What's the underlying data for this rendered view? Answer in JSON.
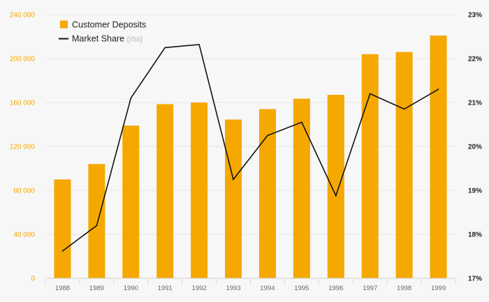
{
  "chart_data": {
    "type": "bar+line",
    "categories": [
      "1988",
      "1989",
      "1990",
      "1991",
      "1992",
      "1993",
      "1994",
      "1995",
      "1996",
      "1997",
      "1998",
      "1999"
    ],
    "series": [
      {
        "name": "Customer Deposits",
        "type": "bar",
        "axis": "left",
        "color": "#f5a800",
        "values": [
          90000,
          104000,
          139000,
          158500,
          160000,
          144500,
          154000,
          163500,
          167000,
          204000,
          206000,
          221000
        ]
      },
      {
        "name": "Market Share",
        "suffix": "(rhs)",
        "type": "line",
        "axis": "right",
        "color": "#111111",
        "values": [
          17.62,
          18.2,
          21.1,
          22.25,
          22.32,
          19.25,
          20.25,
          20.55,
          18.88,
          21.2,
          20.85,
          21.3
        ]
      }
    ],
    "y_left": {
      "min": 0,
      "max": 240000,
      "ticks": [
        0,
        40000,
        80000,
        120000,
        160000,
        200000,
        240000
      ],
      "tick_labels": [
        "0",
        "40 000",
        "80 000",
        "120 000",
        "160 000",
        "200 000",
        "240 000"
      ],
      "color": "#f5a800"
    },
    "y_right": {
      "min": 17,
      "max": 23,
      "ticks": [
        17,
        18,
        19,
        20,
        21,
        22,
        23
      ],
      "tick_labels": [
        "17%",
        "18%",
        "19%",
        "20%",
        "21%",
        "22%",
        "23%"
      ],
      "color": "#222222"
    },
    "legend": {
      "position": "top-left",
      "items": [
        {
          "label": "Customer Deposits",
          "suffix": ""
        },
        {
          "label": "Market Share",
          "suffix": "(rhs)"
        }
      ]
    },
    "title": "",
    "xlabel": "",
    "ylabel": "",
    "grid": true
  }
}
